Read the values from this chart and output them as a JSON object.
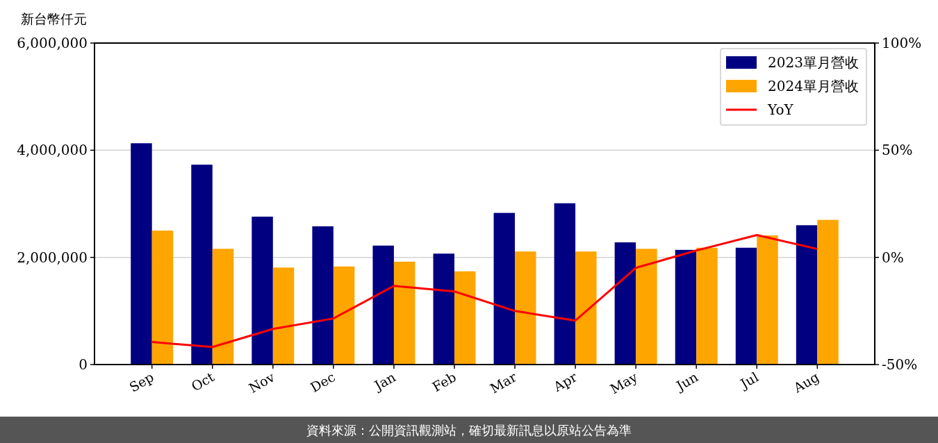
{
  "chart_data": {
    "type": "bar",
    "ylabel": "新台幣仟元",
    "categories": [
      "Sep",
      "Oct",
      "Nov",
      "Dec",
      "Jan",
      "Feb",
      "Mar",
      "Apr",
      "May",
      "Jun",
      "Jul",
      "Aug"
    ],
    "series": [
      {
        "name": "2023單月營收",
        "color": "#000080",
        "values": [
          4130000,
          3730000,
          2760000,
          2580000,
          2220000,
          2070000,
          2830000,
          3010000,
          2280000,
          2140000,
          2180000,
          2600000
        ]
      },
      {
        "name": "2024單月營收",
        "color": "#ffa500",
        "values": [
          2500000,
          2160000,
          1810000,
          1830000,
          1920000,
          1740000,
          2110000,
          2110000,
          2160000,
          2180000,
          2410000,
          2700000
        ]
      },
      {
        "name": "YoY",
        "type": "line",
        "axis": "y2",
        "color": "#ff0000",
        "values": [
          -39.5,
          -41.8,
          -33.4,
          -28.5,
          -13.3,
          -15.9,
          -25.0,
          -29.5,
          -4.9,
          3.2,
          10.4,
          3.9
        ]
      }
    ],
    "ylim": [
      0,
      6000000
    ],
    "yticks": [
      {
        "value": 0,
        "label": "0"
      },
      {
        "value": 2000000,
        "label": "2,000,000"
      },
      {
        "value": 4000000,
        "label": "4,000,000"
      },
      {
        "value": 6000000,
        "label": "6,000,000"
      }
    ],
    "y2lim": [
      -50,
      100
    ],
    "y2ticks": [
      {
        "value": -50,
        "label": "-50%"
      },
      {
        "value": 0,
        "label": "0%"
      },
      {
        "value": 50,
        "label": "50%"
      },
      {
        "value": 100,
        "label": "100%"
      }
    ],
    "grid": "y",
    "legend": "top right",
    "marker": "none",
    "line_style": "solid",
    "annotations": [
      "資料來源：公開資訊觀測站，確切最新訊息以原站公告為準"
    ]
  }
}
